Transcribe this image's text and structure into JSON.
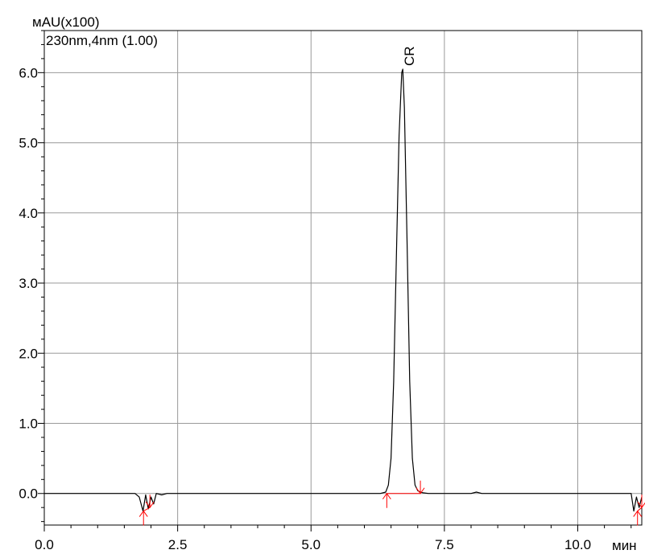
{
  "chart_data": {
    "type": "line",
    "y_unit_label": "мAU(x100)",
    "channel_label": "230nm,4nm (1.00)",
    "x_unit_label": "мин",
    "xlim": [
      0.0,
      11.2
    ],
    "ylim": [
      -0.45,
      6.6
    ],
    "grid": true,
    "x_ticks": [
      {
        "value": 0.0,
        "label": "0.0"
      },
      {
        "value": 2.5,
        "label": "2.5"
      },
      {
        "value": 5.0,
        "label": "5.0"
      },
      {
        "value": 7.5,
        "label": "7.5"
      },
      {
        "value": 10.0,
        "label": "10.0"
      }
    ],
    "y_ticks": [
      {
        "value": 0.0,
        "label": "0.0"
      },
      {
        "value": 1.0,
        "label": "1.0"
      },
      {
        "value": 2.0,
        "label": "2.0"
      },
      {
        "value": 3.0,
        "label": "3.0"
      },
      {
        "value": 4.0,
        "label": "4.0"
      },
      {
        "value": 5.0,
        "label": "5.0"
      },
      {
        "value": 6.0,
        "label": "6.0"
      }
    ],
    "series": [
      {
        "x": [
          0.0,
          0.5,
          1.0,
          1.5,
          1.7,
          1.78,
          1.85,
          1.9,
          1.95,
          2.0,
          2.05,
          2.1,
          2.2,
          2.3,
          2.5,
          3.0,
          3.5,
          4.0,
          4.5,
          5.0,
          5.5,
          6.0,
          6.3,
          6.4,
          6.45,
          6.5,
          6.55,
          6.6,
          6.65,
          6.7,
          6.72,
          6.75,
          6.8,
          6.85,
          6.9,
          6.95,
          7.0,
          7.05,
          7.1,
          7.2,
          7.5,
          8.0,
          8.1,
          8.2,
          8.5,
          9.0,
          9.5,
          10.0,
          10.5,
          10.9,
          11.0,
          11.05,
          11.1,
          11.15,
          11.2
        ],
        "y": [
          0.0,
          0.0,
          0.0,
          0.0,
          0.0,
          -0.05,
          -0.25,
          -0.02,
          -0.22,
          -0.05,
          -0.15,
          0.0,
          -0.02,
          0.0,
          0.0,
          0.0,
          0.0,
          0.0,
          0.0,
          0.0,
          0.0,
          0.0,
          0.0,
          0.02,
          0.12,
          0.5,
          1.6,
          3.4,
          5.1,
          6.0,
          6.05,
          5.5,
          3.6,
          1.6,
          0.5,
          0.12,
          0.04,
          0.02,
          0.01,
          0.0,
          0.0,
          0.0,
          0.02,
          0.0,
          0.0,
          0.0,
          0.0,
          0.0,
          0.0,
          0.0,
          0.0,
          -0.25,
          -0.05,
          -0.2,
          -0.05
        ]
      }
    ],
    "peaks": [
      {
        "label": "CR",
        "apex_x": 6.72,
        "apex_y": 6.05
      }
    ],
    "integration_marks": [
      {
        "start_x": 1.86,
        "start_y": -0.25,
        "end_x": 1.98,
        "end_y": -0.2
      },
      {
        "start_x": 6.42,
        "start_y": 0.0,
        "end_x": 7.05,
        "end_y": 0.0
      },
      {
        "start_x": 11.12,
        "start_y": -0.25,
        "end_x": 11.2,
        "end_y": -0.2
      }
    ],
    "colors": {
      "trace": "#000000",
      "grid": "#9a9a9a",
      "integration": "#ff0000"
    }
  }
}
